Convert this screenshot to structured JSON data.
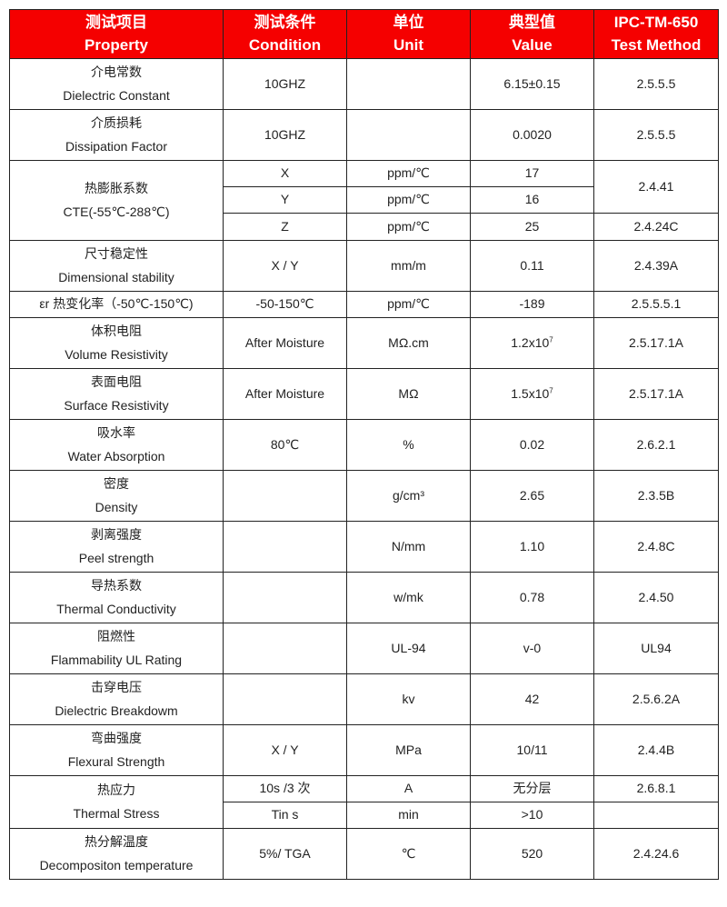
{
  "header": [
    {
      "cn": "测试项目",
      "en": "Property"
    },
    {
      "cn": "测试条件",
      "en": "Condition"
    },
    {
      "cn": "单位",
      "en": "Unit"
    },
    {
      "cn": "典型值",
      "en": "Value"
    },
    {
      "cn": "IPC-TM-650",
      "en": "Test Method"
    }
  ],
  "header_color": "#f50000",
  "rows": [
    {
      "cn": "介电常数",
      "en": "Dielectric Constant",
      "sub": [
        {
          "condition": "10GHZ",
          "unit": "",
          "value": "6.15±0.15",
          "method": "2.5.5.5"
        }
      ]
    },
    {
      "cn": "介质损耗",
      "en": "Dissipation Factor",
      "sub": [
        {
          "condition": "10GHZ",
          "unit": "",
          "value": "0.0020",
          "method": "2.5.5.5"
        }
      ]
    },
    {
      "cn": "热膨胀系数",
      "en": "CTE(-55℃-288℃)",
      "sub": [
        {
          "condition": "X",
          "unit": "ppm/℃",
          "value": "17",
          "method": "2.4.41",
          "method_rowspan": 2
        },
        {
          "condition": "Y",
          "unit": "ppm/℃",
          "value": "16",
          "method_covered": true
        },
        {
          "condition": "Z",
          "unit": "ppm/℃",
          "value": "25",
          "method": "2.4.24C"
        }
      ]
    },
    {
      "cn": "尺寸稳定性",
      "en": "Dimensional stability",
      "sub": [
        {
          "condition": "X / Y",
          "unit": "mm/m",
          "value": "0.11",
          "method": "2.4.39A"
        }
      ]
    },
    {
      "cn": "εr 热变化率（-50℃-150℃)",
      "en": "",
      "single": true,
      "sub": [
        {
          "condition": "-50-150℃",
          "unit": "ppm/℃",
          "value": "-189",
          "method": "2.5.5.5.1"
        }
      ]
    },
    {
      "cn": "体积电阻",
      "en": "Volume Resistivity",
      "sub": [
        {
          "condition": "After Moisture",
          "unit": "MΩ.cm",
          "value": "1.2x10",
          "value_exp": "7",
          "method": "2.5.17.1A"
        }
      ]
    },
    {
      "cn": "表面电阻",
      "en": "Surface Resistivity",
      "sub": [
        {
          "condition": "After Moisture",
          "unit": "MΩ",
          "value": "1.5x10",
          "value_exp": "7",
          "method": "2.5.17.1A"
        }
      ]
    },
    {
      "cn": "吸水率",
      "en": "Water Absorption",
      "sub": [
        {
          "condition": "80℃",
          "unit": "%",
          "value": "0.02",
          "method": "2.6.2.1"
        }
      ]
    },
    {
      "cn": "密度",
      "en": "Density",
      "sub": [
        {
          "condition": "",
          "unit": "g/cm³",
          "value": "2.65",
          "method": "2.3.5B"
        }
      ]
    },
    {
      "cn": "剥离强度",
      "en": "Peel strength",
      "sub": [
        {
          "condition": "",
          "unit": "N/mm",
          "value": "1.10",
          "method": "2.4.8C"
        }
      ]
    },
    {
      "cn": "导热系数",
      "en": "Thermal Conductivity",
      "sub": [
        {
          "condition": "",
          "unit": "w/mk",
          "value": "0.78",
          "method": "2.4.50"
        }
      ]
    },
    {
      "cn": "阻燃性",
      "en": "Flammability UL Rating",
      "sub": [
        {
          "condition": "",
          "unit": "UL-94",
          "value": "v-0",
          "method": "UL94"
        }
      ]
    },
    {
      "cn": "击穿电压",
      "en": "Dielectric Breakdowm",
      "sub": [
        {
          "condition": "",
          "unit": "kv",
          "value": "42",
          "method": "2.5.6.2A"
        }
      ]
    },
    {
      "cn": "弯曲强度",
      "en": "Flexural Strength",
      "sub": [
        {
          "condition": "X / Y",
          "unit": "MPa",
          "value": "10/11",
          "method": "2.4.4B"
        }
      ]
    },
    {
      "cn": "热应力",
      "en": "Thermal Stress",
      "sub": [
        {
          "condition": "10s /3 次",
          "unit": "A",
          "value": "无分层",
          "method": "2.6.8.1"
        },
        {
          "condition": "Tin s",
          "unit": "min",
          "value": ">10",
          "method": ""
        }
      ]
    },
    {
      "cn": "热分解温度",
      "en": "Decompositon temperature",
      "sub": [
        {
          "condition": "5%/ TGA",
          "unit": "℃",
          "value": "520",
          "method": "2.4.24.6"
        }
      ]
    }
  ]
}
